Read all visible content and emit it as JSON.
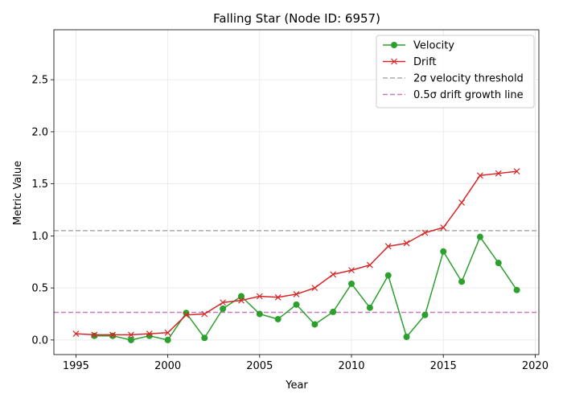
{
  "chart_data": {
    "type": "line",
    "title": "Falling Star (Node ID: 6957)",
    "xlabel": "Year",
    "ylabel": "Metric Value",
    "xlim": [
      1993.8,
      2020.2
    ],
    "ylim": [
      -0.14,
      2.98
    ],
    "xticks": [
      1995,
      2000,
      2005,
      2010,
      2015,
      2020
    ],
    "yticks": [
      0.0,
      0.5,
      1.0,
      1.5,
      2.0,
      2.5
    ],
    "grid": true,
    "legend_position": "upper-right",
    "series": [
      {
        "name": "Velocity",
        "color": "#2ca02c",
        "marker": "circle",
        "x": [
          1996,
          1997,
          1998,
          1999,
          2000,
          2001,
          2002,
          2003,
          2004,
          2005,
          2006,
          2007,
          2008,
          2009,
          2010,
          2011,
          2012,
          2013,
          2014,
          2015,
          2016,
          2017,
          2018,
          2019
        ],
        "y": [
          0.04,
          0.04,
          0.0,
          0.04,
          0.0,
          0.26,
          0.02,
          0.3,
          0.42,
          0.25,
          0.2,
          0.34,
          0.15,
          0.27,
          0.54,
          0.31,
          0.62,
          0.03,
          0.24,
          0.85,
          0.56,
          0.99,
          0.74,
          0.48
        ]
      },
      {
        "name": "Drift",
        "color": "#d62728",
        "marker": "x",
        "x": [
          1995,
          1996,
          1997,
          1998,
          1999,
          2000,
          2001,
          2002,
          2003,
          2004,
          2005,
          2006,
          2007,
          2008,
          2009,
          2010,
          2011,
          2012,
          2013,
          2014,
          2015,
          2016,
          2017,
          2018,
          2019
        ],
        "y": [
          0.06,
          0.05,
          0.05,
          0.05,
          0.06,
          0.07,
          0.24,
          0.25,
          0.36,
          0.38,
          0.42,
          0.41,
          0.44,
          0.5,
          0.63,
          0.67,
          0.72,
          0.9,
          0.93,
          1.03,
          1.08,
          1.32,
          1.58,
          1.6,
          1.62
        ]
      }
    ],
    "reference_lines": [
      {
        "name": "2σ velocity threshold",
        "y": 1.05,
        "color": "#aaaaaa",
        "style": "dashed"
      },
      {
        "name": "0.5σ drift growth line",
        "y": 0.265,
        "color": "#c27bbf",
        "style": "dashed"
      }
    ]
  }
}
